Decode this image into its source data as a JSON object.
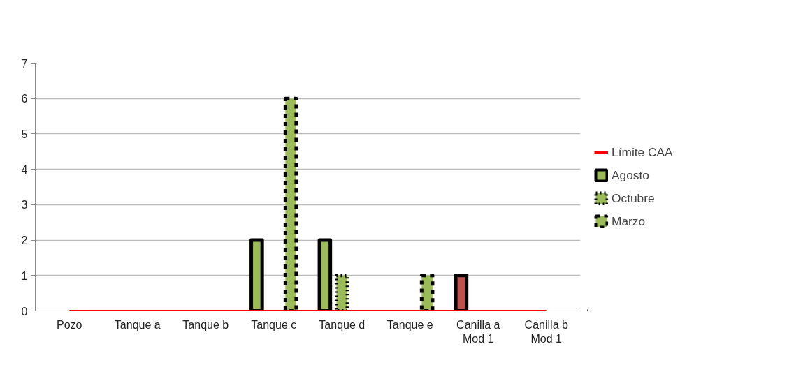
{
  "chart_data": {
    "type": "bar",
    "categories": [
      "Pozo",
      "Tanque a",
      "Tanque b",
      "Tanque c",
      "Tanque d",
      "Tanque e",
      "Canilla a\nMod 1",
      "Canilla b\nMod 1"
    ],
    "series": [
      {
        "name": "Límite CAA",
        "type": "line",
        "color": "#ff0000",
        "values": [
          0,
          0,
          0,
          0,
          0,
          0,
          0,
          0
        ]
      },
      {
        "name": "Agosto",
        "color": "#9bbb59",
        "line_style": "solid",
        "colors": [
          "#9bbb59",
          "#9bbb59",
          "#9bbb59",
          "#9bbb59",
          "#9bbb59",
          "#9bbb59",
          "#c0504d",
          "#9bbb59"
        ],
        "values": [
          null,
          null,
          null,
          2,
          2,
          null,
          1,
          null
        ]
      },
      {
        "name": "Octubre",
        "color": "#9bbb59",
        "line_style": "dotted",
        "values": [
          null,
          null,
          null,
          null,
          1,
          null,
          null,
          null
        ]
      },
      {
        "name": "Marzo",
        "color": "#9bbb59",
        "line_style": "dashed",
        "values": [
          null,
          null,
          null,
          6,
          null,
          1,
          null,
          null
        ]
      }
    ],
    "ylim": [
      0,
      7
    ],
    "yticks": [
      0,
      1,
      2,
      3,
      4,
      5,
      6,
      7
    ],
    "grid": "y",
    "legend": "right"
  }
}
